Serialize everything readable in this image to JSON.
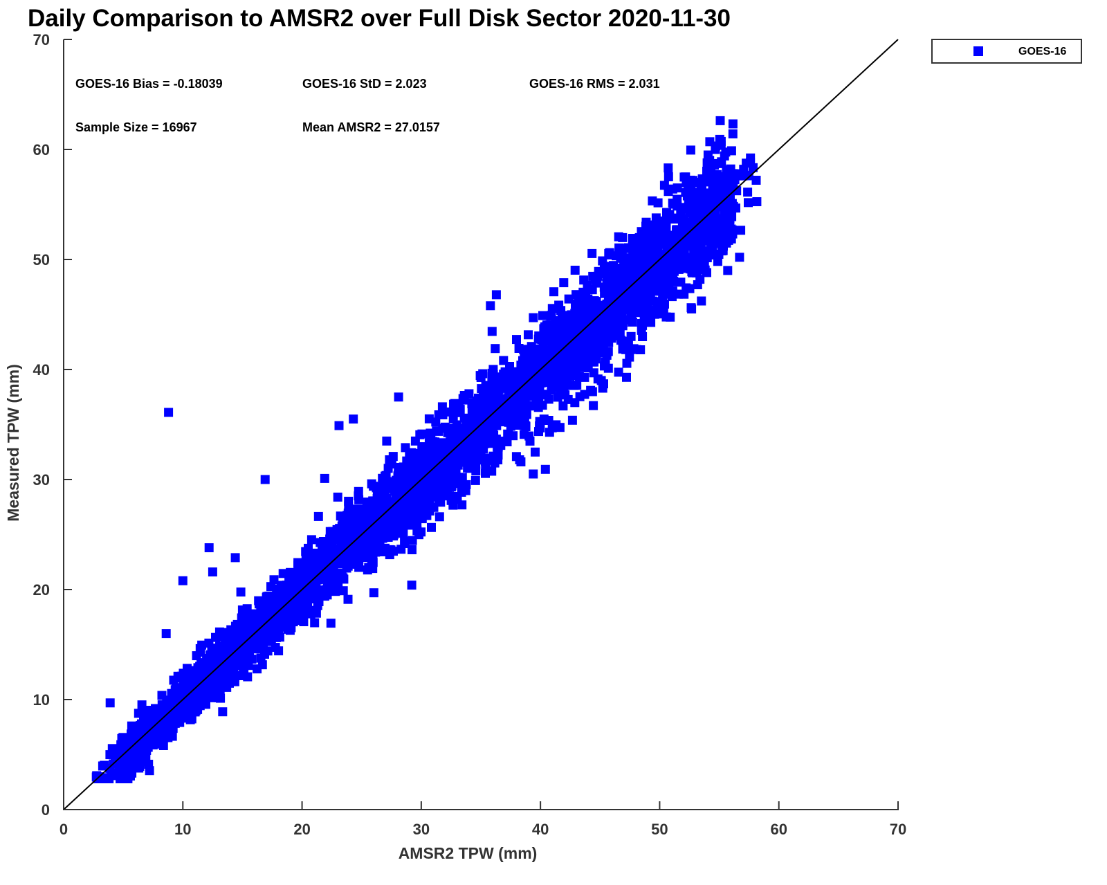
{
  "chart_data": {
    "type": "scatter",
    "title": "Daily Comparison to AMSR2 over Full Disk Sector 2020-11-30",
    "xlabel": "AMSR2 TPW (mm)",
    "ylabel": "Measured TPW (mm)",
    "xlim": [
      0,
      70
    ],
    "ylim": [
      0,
      70
    ],
    "xticks": [
      "0",
      "10",
      "20",
      "30",
      "40",
      "50",
      "60",
      "70"
    ],
    "yticks": [
      "0",
      "10",
      "20",
      "30",
      "40",
      "50",
      "60",
      "70"
    ],
    "grid": false,
    "legend": {
      "position": "top-right-outside",
      "entries": [
        "GOES-16"
      ]
    },
    "reference_line": {
      "label": "1:1",
      "from": [
        0,
        0
      ],
      "to": [
        70,
        70
      ]
    },
    "series": [
      {
        "name": "GOES-16",
        "color": "#0000ff",
        "marker": "square",
        "x_range": [
          2.5,
          58.2
        ],
        "outliers": [
          [
            8.8,
            36.1
          ],
          [
            16.9,
            30.0
          ],
          [
            12.2,
            23.8
          ],
          [
            10.0,
            20.8
          ],
          [
            24.3,
            35.5
          ],
          [
            23.1,
            34.9
          ],
          [
            28.1,
            37.5
          ],
          [
            3.9,
            9.7
          ],
          [
            4.5,
            3.3
          ],
          [
            3.6,
            2.9
          ],
          [
            47.6,
            43.0
          ],
          [
            45.3,
            38.7
          ],
          [
            56.7,
            50.2
          ],
          [
            58.1,
            57.2
          ],
          [
            57.0,
            57.6
          ],
          [
            55.2,
            57.4
          ],
          [
            51.1,
            56.4
          ],
          [
            36.3,
            46.8
          ],
          [
            14.4,
            22.9
          ],
          [
            27.1,
            33.5
          ],
          [
            39.4,
            30.5
          ],
          [
            29.2,
            20.4
          ],
          [
            35.8,
            45.8
          ],
          [
            12.5,
            21.6
          ],
          [
            8.6,
            16.0
          ],
          [
            40.3,
            35.5
          ],
          [
            48.7,
            52.4
          ],
          [
            21.9,
            30.1
          ]
        ]
      }
    ],
    "annotations": [
      "GOES-16 Bias = -0.18039",
      "GOES-16 StD = 2.023",
      "GOES-16 RMS = 2.031",
      "Sample Size = 16967",
      "Mean AMSR2 = 27.0157"
    ],
    "stats": {
      "bias": -0.18039,
      "std": 2.023,
      "rms": 2.031,
      "n": 16967,
      "mean_amsr2": 27.0157
    }
  }
}
